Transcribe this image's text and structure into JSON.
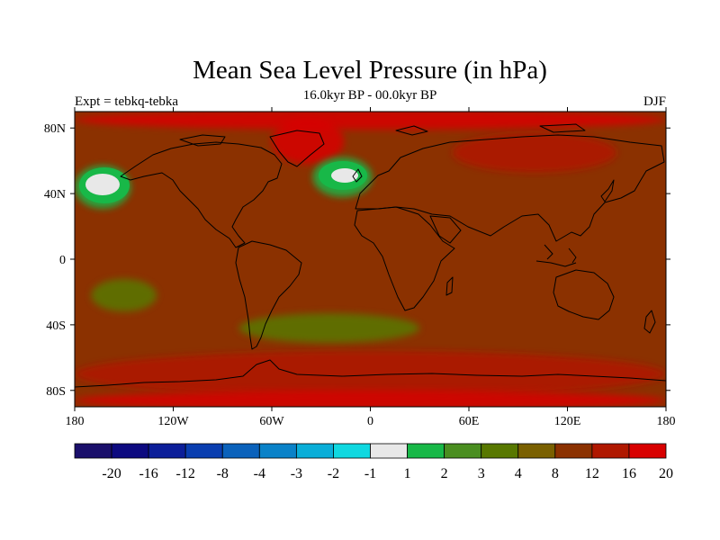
{
  "title": "Mean Sea Level Pressure (in hPa)",
  "left_string": "Expt = tebkq-tebka",
  "center_string": "16.0kyr BP - 00.0kyr BP",
  "right_string": "DJF",
  "map": {
    "projection": "cylindrical equidistant",
    "lon_range": [
      -180,
      180
    ],
    "lat_range": [
      -90,
      90
    ],
    "x_ticks": [
      {
        "lon": -180,
        "label": "180"
      },
      {
        "lon": -120,
        "label": "120W"
      },
      {
        "lon": -60,
        "label": "60W"
      },
      {
        "lon": 0,
        "label": "0"
      },
      {
        "lon": 60,
        "label": "60E"
      },
      {
        "lon": 120,
        "label": "120E"
      },
      {
        "lon": 180,
        "label": "180"
      }
    ],
    "y_ticks": [
      {
        "lat": 80,
        "label": "80N"
      },
      {
        "lat": 40,
        "label": "40N"
      },
      {
        "lat": 0,
        "label": "0"
      },
      {
        "lat": -40,
        "label": "40S"
      },
      {
        "lat": -80,
        "label": "80S"
      }
    ],
    "background_level_color": "#8b3100"
  },
  "colorbar": {
    "labels": [
      "-20",
      "-16",
      "-12",
      "-8",
      "-4",
      "-3",
      "-2",
      "-1",
      "1",
      "2",
      "3",
      "4",
      "8",
      "12",
      "16",
      "20"
    ],
    "colors": [
      "#1a0f6b",
      "#0d0a80",
      "#0c1e99",
      "#0a3eb0",
      "#0b62bb",
      "#0a82c8",
      "#0aaed8",
      "#10d8e0",
      "#e8e8e8",
      "#18b848",
      "#4a8e20",
      "#587800",
      "#7a6000",
      "#8b3100",
      "#b01800",
      "#d80000"
    ]
  },
  "fields": [
    {
      "name": "arctic-high",
      "lon": 0,
      "lat": 85,
      "rx": 180,
      "ry": 6,
      "color": "#d80000"
    },
    {
      "name": "greenland-high",
      "lon": -38,
      "lat": 72,
      "rx": 22,
      "ry": 14,
      "color": "#d80000"
    },
    {
      "name": "siberian-high",
      "lon": 100,
      "lat": 65,
      "rx": 50,
      "ry": 12,
      "color": "#b01800"
    },
    {
      "name": "north-pacific-anomaly",
      "lon": -163,
      "lat": 44,
      "rx": 17,
      "ry": 13,
      "color": "#18b848"
    },
    {
      "name": "north-atlantic-anomaly",
      "lon": -17,
      "lat": 50,
      "rx": 18,
      "ry": 12,
      "color": "#18b848"
    },
    {
      "name": "south-pacific-anomaly",
      "lon": -150,
      "lat": -22,
      "rx": 20,
      "ry": 10,
      "color": "#587800"
    },
    {
      "name": "south-atlantic-anomaly",
      "lon": -25,
      "lat": -42,
      "rx": 55,
      "ry": 9,
      "color": "#587800"
    },
    {
      "name": "southern-ocean-band",
      "lon": 0,
      "lat": -70,
      "rx": 180,
      "ry": 14,
      "color": "#b01800"
    },
    {
      "name": "antarctic-high",
      "lon": 0,
      "lat": -86,
      "rx": 180,
      "ry": 6,
      "color": "#d80000"
    }
  ]
}
